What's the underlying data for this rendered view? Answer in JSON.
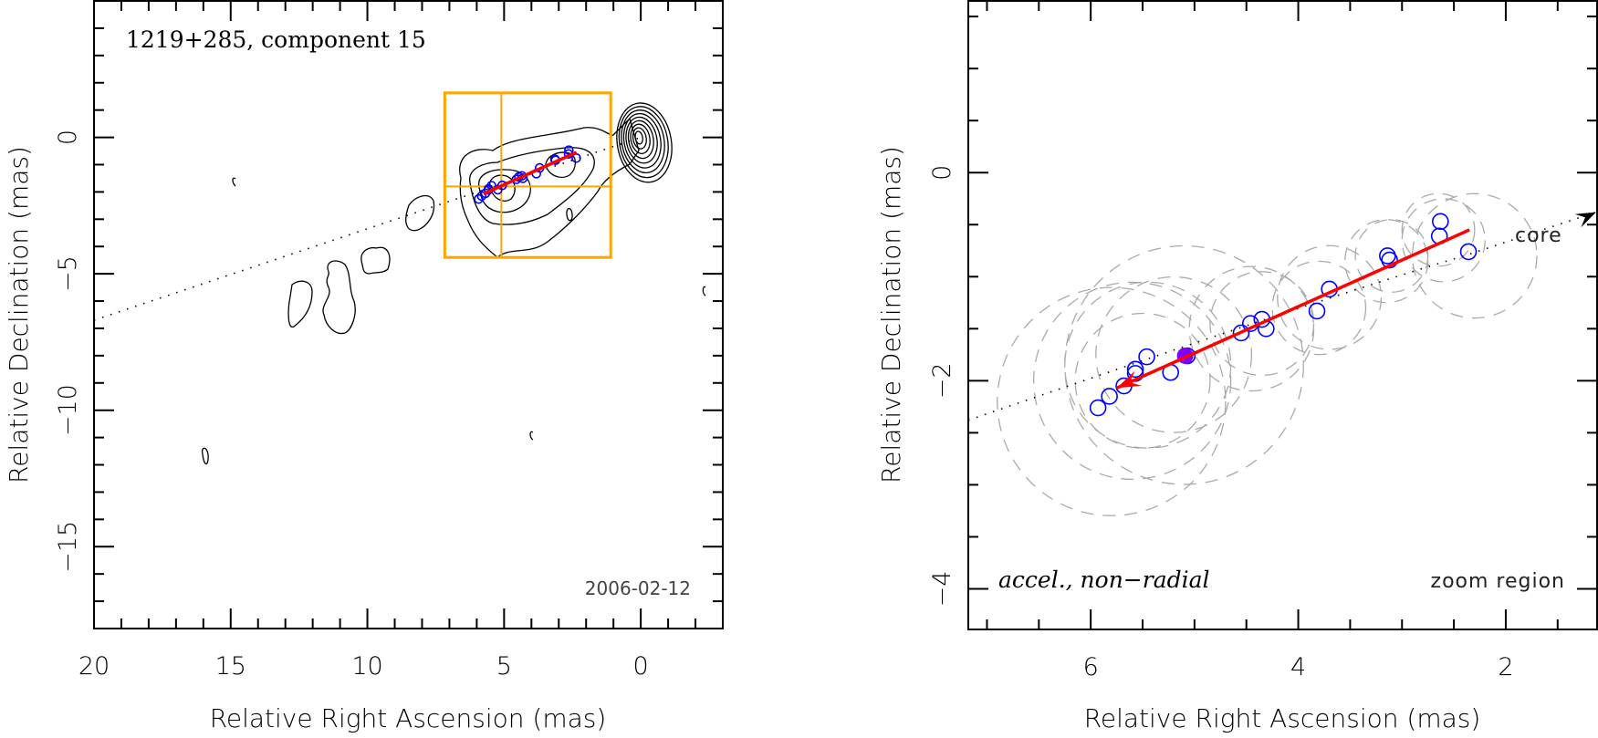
{
  "chart_data": [
    {
      "type": "scatter",
      "panel": "left",
      "title": "1219+285, component 15",
      "annotation": "2006-02-12",
      "xlabel": "Relative Right Ascension (mas)",
      "ylabel": "Relative Declination (mas)",
      "xlim": [
        20,
        -3
      ],
      "ylim": [
        -18,
        5
      ],
      "xticks": [
        20,
        15,
        10,
        5,
        0
      ],
      "yticks": [
        0,
        -5,
        -10,
        -15
      ],
      "xtick_labels": [
        "20",
        "15",
        "10",
        "5",
        "0"
      ],
      "ytick_labels": [
        "0",
        "−5",
        "−10",
        "−15"
      ],
      "grid": false,
      "zoom_region": {
        "ra": [
          7.17,
          1.1
        ],
        "dec": [
          -4.4,
          1.63
        ],
        "cross_ra": 5.1,
        "cross_dec": -1.8,
        "color": "#ffa500"
      },
      "core_position": [
        0,
        0
      ],
      "path_to_core": {
        "from": [
          20,
          -6.7
        ],
        "to": [
          0,
          0
        ]
      },
      "fit_line": {
        "from": [
          5.75,
          -2.07
        ],
        "to": [
          2.35,
          -0.55
        ],
        "color": "#ff0000"
      },
      "components": [
        [
          5.93,
          -2.26
        ],
        [
          5.82,
          -2.15
        ],
        [
          5.68,
          -2.05
        ],
        [
          5.57,
          -1.93
        ],
        [
          5.57,
          -1.89
        ],
        [
          5.46,
          -1.77
        ],
        [
          5.23,
          -1.92
        ],
        [
          5.07,
          -1.76
        ],
        [
          4.55,
          -1.54
        ],
        [
          4.46,
          -1.45
        ],
        [
          4.35,
          -1.41
        ],
        [
          4.31,
          -1.5
        ],
        [
          3.82,
          -1.33
        ],
        [
          3.7,
          -1.12
        ],
        [
          3.14,
          -0.8
        ],
        [
          3.12,
          -0.84
        ],
        [
          2.63,
          -0.47
        ],
        [
          2.64,
          -0.61
        ],
        [
          2.36,
          -0.76
        ]
      ],
      "component_color": "#0000ff"
    },
    {
      "type": "scatter",
      "panel": "right",
      "xlabel": "Relative Right Ascension (mas)",
      "ylabel": "Relative Declination (mas)",
      "xlim": [
        7.18,
        1.12
      ],
      "ylim": [
        -4.39,
        1.65
      ],
      "xticks": [
        6,
        4,
        2
      ],
      "yticks": [
        0,
        -2,
        -4
      ],
      "xtick_labels": [
        "6",
        "4",
        "2"
      ],
      "ytick_labels": [
        "0",
        "−2",
        "−4"
      ],
      "grid": false,
      "annotation_left": "accel., non−radial",
      "annotation_right": "zoom region",
      "core_label": "core",
      "core_arrow_tip": [
        1.13,
        -0.38
      ],
      "path_to_core": {
        "from": [
          7.18,
          -2.38
        ],
        "to": [
          1.13,
          -0.38
        ]
      },
      "fit_line": {
        "from": [
          2.35,
          -0.55
        ],
        "to": [
          5.75,
          -2.07
        ],
        "arrow_at": "end",
        "color": "#ff0000"
      },
      "reference_epoch_component": [
        5.09,
        -1.76
      ],
      "reference_color": "#7f00ff",
      "components": [
        [
          5.93,
          -2.26
        ],
        [
          5.82,
          -2.15
        ],
        [
          5.68,
          -2.05
        ],
        [
          5.57,
          -1.93
        ],
        [
          5.57,
          -1.89
        ],
        [
          5.46,
          -1.77
        ],
        [
          5.23,
          -1.92
        ],
        [
          5.07,
          -1.76
        ],
        [
          4.55,
          -1.54
        ],
        [
          4.46,
          -1.45
        ],
        [
          4.35,
          -1.41
        ],
        [
          4.31,
          -1.5
        ],
        [
          3.82,
          -1.33
        ],
        [
          3.7,
          -1.12
        ],
        [
          3.14,
          -0.8
        ],
        [
          3.12,
          -0.84
        ],
        [
          2.63,
          -0.47
        ],
        [
          2.64,
          -0.61
        ],
        [
          2.36,
          -0.76
        ]
      ],
      "component_color": "#0000ff",
      "error_circles": [
        {
          "center": [
            5.8,
            -2.2
          ],
          "radius": 1.1
        },
        {
          "center": [
            5.6,
            -2.0
          ],
          "radius": 0.95
        },
        {
          "center": [
            5.45,
            -1.85
          ],
          "radius": 0.8
        },
        {
          "center": [
            5.5,
            -2.0
          ],
          "radius": 0.65
        },
        {
          "center": [
            5.1,
            -1.85
          ],
          "radius": 1.15
        },
        {
          "center": [
            5.2,
            -1.75
          ],
          "radius": 0.75
        },
        {
          "center": [
            4.45,
            -1.5
          ],
          "radius": 0.6
        },
        {
          "center": [
            4.35,
            -1.45
          ],
          "radius": 0.5
        },
        {
          "center": [
            3.8,
            -1.3
          ],
          "radius": 0.45
        },
        {
          "center": [
            3.7,
            -1.2
          ],
          "radius": 0.5
        },
        {
          "center": [
            3.15,
            -0.85
          ],
          "radius": 0.4
        },
        {
          "center": [
            3.1,
            -0.8
          ],
          "radius": 0.35
        },
        {
          "center": [
            2.65,
            -0.55
          ],
          "radius": 0.35
        },
        {
          "center": [
            2.6,
            -0.65
          ],
          "radius": 0.4
        },
        {
          "center": [
            2.3,
            -0.8
          ],
          "radius": 0.6
        }
      ],
      "error_circle_color": "#aaaaaa"
    }
  ]
}
